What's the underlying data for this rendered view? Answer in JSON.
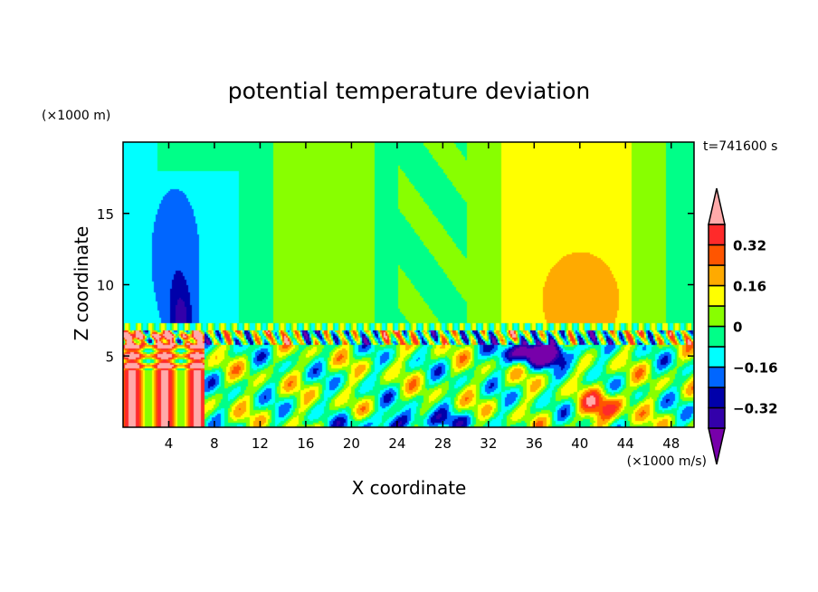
{
  "chart_data": {
    "type": "heatmap",
    "title": "potential temperature deviation",
    "xlabel": "X coordinate",
    "ylabel": "Z coordinate",
    "x_unit": "(×1000 m/s)",
    "y_unit": "(×1000 m)",
    "time_label": "t=741600 s",
    "xlim": [
      0,
      50
    ],
    "ylim": [
      0,
      20
    ],
    "x_ticks": [
      4,
      8,
      12,
      16,
      20,
      24,
      28,
      32,
      36,
      40,
      44,
      48
    ],
    "y_ticks": [
      5,
      10,
      15
    ],
    "levels": [
      -0.4,
      -0.32,
      -0.24,
      -0.16,
      -0.08,
      0,
      0.08,
      0.16,
      0.24,
      0.32,
      0.4
    ],
    "colorbar_labels": [
      "0.32",
      "0.16",
      "0",
      "−0.16",
      "−0.32"
    ],
    "colorbar_label_values": [
      0.32,
      0.16,
      0,
      -0.16,
      -0.32
    ],
    "colors": [
      "#3300aa",
      "#0000aa",
      "#0066ff",
      "#00ffff",
      "#00ff88",
      "#88ff00",
      "#ffff00",
      "#ffaa00",
      "#ff5500",
      "#ff2a2a"
    ],
    "under_color": "#7700aa",
    "over_color": "#ffaaaa"
  }
}
